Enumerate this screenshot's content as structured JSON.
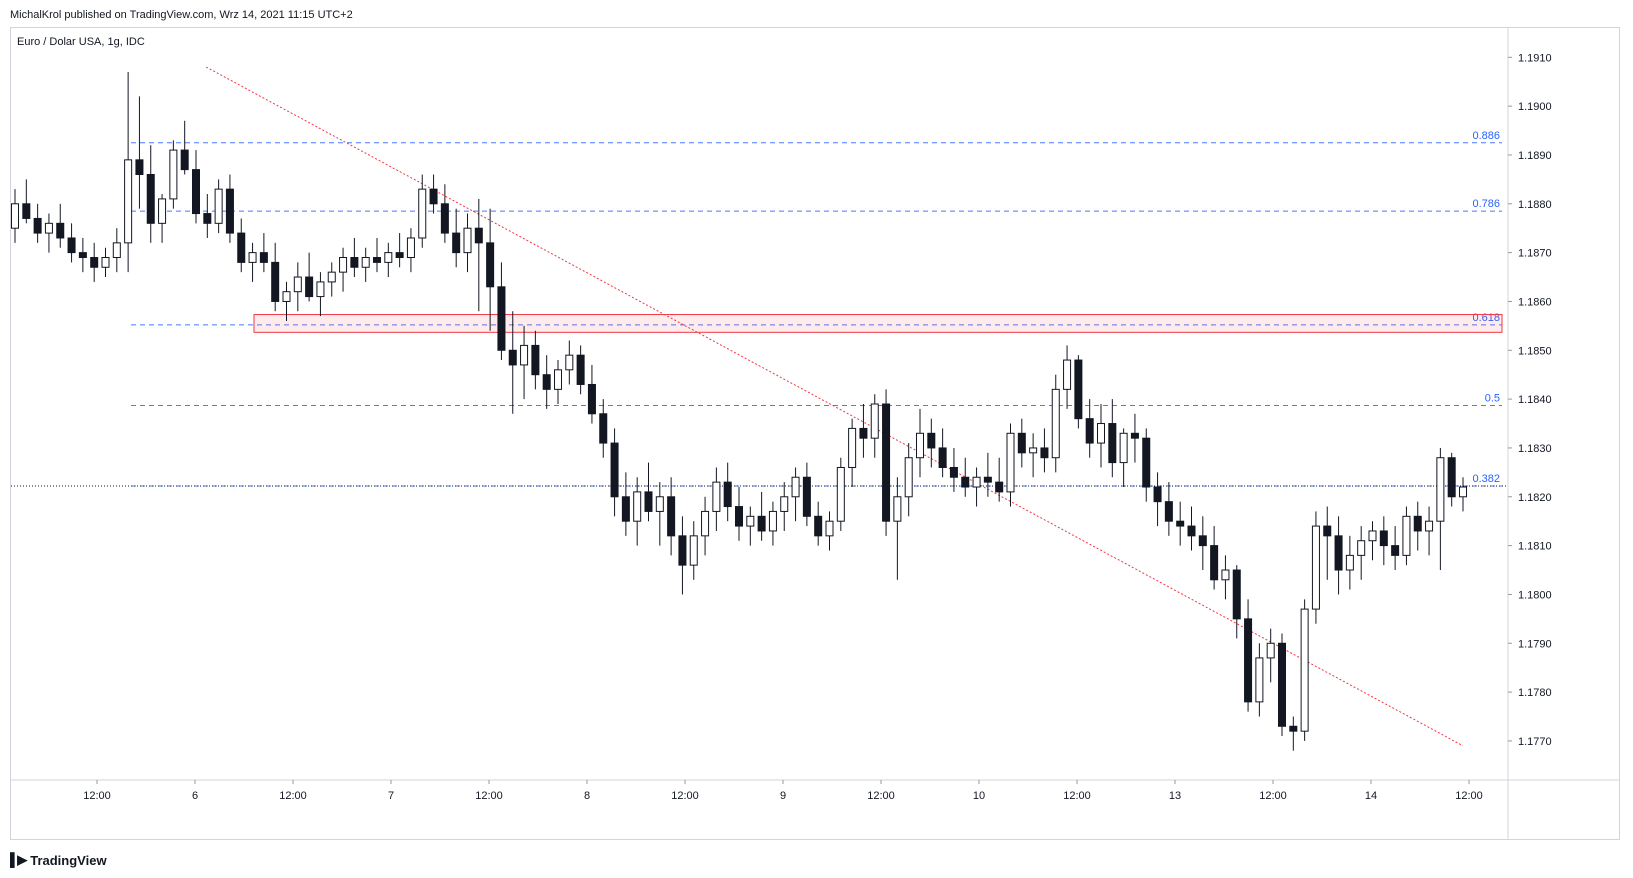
{
  "header": {
    "publisher_line": "MichalKrol published on TradingView.com, Wrz 14, 2021 11:15 UTC+2"
  },
  "footer": {
    "brand": "TradingView"
  },
  "chart_data": {
    "type": "candlestick",
    "title": "Euro / Dolar USA, 1g, IDC",
    "y_axis": {
      "ylim": [
        1.1762,
        1.1916
      ],
      "ticks": [
        "1.1910",
        "1.1900",
        "1.1890",
        "1.1880",
        "1.1870",
        "1.1860",
        "1.1850",
        "1.1840",
        "1.1830",
        "1.1820",
        "1.1810",
        "1.1800",
        "1.1790",
        "1.1780",
        "1.1770"
      ]
    },
    "x_axis": {
      "tick_labels": [
        "12:00",
        "6",
        "12:00",
        "7",
        "12:00",
        "8",
        "12:00",
        "9",
        "12:00",
        "10",
        "12:00",
        "13",
        "12:00",
        "14",
        "12:00"
      ]
    },
    "fib_levels": [
      {
        "label": "0.886",
        "value": 1.18925
      },
      {
        "label": "0.786",
        "value": 1.18785
      },
      {
        "label": "0.618",
        "value": 1.18552
      },
      {
        "label": "0.5",
        "value": 1.18387
      },
      {
        "label": "0.382",
        "value": 1.18222
      }
    ],
    "current_price": 1.18222,
    "resistance_zone": {
      "high": 1.18565,
      "low": 1.18545
    },
    "trendline": {
      "from": {
        "bar": 7,
        "price": 1.1908
      },
      "to": {
        "bar": 231,
        "price": 1.1769
      }
    },
    "candles": [
      {
        "o": 1.1875,
        "h": 1.1883,
        "l": 1.1872,
        "c": 1.188
      },
      {
        "o": 1.188,
        "h": 1.1885,
        "l": 1.1876,
        "c": 1.1877
      },
      {
        "o": 1.1877,
        "h": 1.188,
        "l": 1.1872,
        "c": 1.1874
      },
      {
        "o": 1.1874,
        "h": 1.1878,
        "l": 1.187,
        "c": 1.1876
      },
      {
        "o": 1.1876,
        "h": 1.188,
        "l": 1.1871,
        "c": 1.1873
      },
      {
        "o": 1.1873,
        "h": 1.1876,
        "l": 1.1868,
        "c": 1.187
      },
      {
        "o": 1.187,
        "h": 1.1873,
        "l": 1.1866,
        "c": 1.1869
      },
      {
        "o": 1.1869,
        "h": 1.1872,
        "l": 1.1864,
        "c": 1.1867
      },
      {
        "o": 1.1867,
        "h": 1.1871,
        "l": 1.1865,
        "c": 1.1869
      },
      {
        "o": 1.1869,
        "h": 1.1875,
        "l": 1.1866,
        "c": 1.1872
      },
      {
        "o": 1.1872,
        "h": 1.1907,
        "l": 1.1866,
        "c": 1.1889
      },
      {
        "o": 1.1889,
        "h": 1.1902,
        "l": 1.1879,
        "c": 1.1886
      },
      {
        "o": 1.1886,
        "h": 1.1892,
        "l": 1.1872,
        "c": 1.1876
      },
      {
        "o": 1.1876,
        "h": 1.1882,
        "l": 1.1872,
        "c": 1.1881
      },
      {
        "o": 1.1881,
        "h": 1.1893,
        "l": 1.1879,
        "c": 1.1891
      },
      {
        "o": 1.1891,
        "h": 1.1897,
        "l": 1.1886,
        "c": 1.1887
      },
      {
        "o": 1.1887,
        "h": 1.1891,
        "l": 1.1876,
        "c": 1.1878
      },
      {
        "o": 1.1878,
        "h": 1.1882,
        "l": 1.1873,
        "c": 1.1876
      },
      {
        "o": 1.1876,
        "h": 1.1885,
        "l": 1.1874,
        "c": 1.1883
      },
      {
        "o": 1.1883,
        "h": 1.1886,
        "l": 1.1872,
        "c": 1.1874
      },
      {
        "o": 1.1874,
        "h": 1.1877,
        "l": 1.1866,
        "c": 1.1868
      },
      {
        "o": 1.1868,
        "h": 1.1872,
        "l": 1.1864,
        "c": 1.187
      },
      {
        "o": 1.187,
        "h": 1.1874,
        "l": 1.1866,
        "c": 1.1868
      },
      {
        "o": 1.1868,
        "h": 1.1872,
        "l": 1.1858,
        "c": 1.186
      },
      {
        "o": 1.186,
        "h": 1.1864,
        "l": 1.1856,
        "c": 1.1862
      },
      {
        "o": 1.1862,
        "h": 1.1868,
        "l": 1.1858,
        "c": 1.1865
      },
      {
        "o": 1.1865,
        "h": 1.187,
        "l": 1.186,
        "c": 1.1861
      },
      {
        "o": 1.1861,
        "h": 1.1866,
        "l": 1.1857,
        "c": 1.1864
      },
      {
        "o": 1.1864,
        "h": 1.1868,
        "l": 1.1861,
        "c": 1.1866
      },
      {
        "o": 1.1866,
        "h": 1.1871,
        "l": 1.1862,
        "c": 1.1869
      },
      {
        "o": 1.1869,
        "h": 1.1873,
        "l": 1.1865,
        "c": 1.1867
      },
      {
        "o": 1.1867,
        "h": 1.1871,
        "l": 1.1864,
        "c": 1.1869
      },
      {
        "o": 1.1869,
        "h": 1.1873,
        "l": 1.1866,
        "c": 1.1868
      },
      {
        "o": 1.1868,
        "h": 1.1872,
        "l": 1.1865,
        "c": 1.187
      },
      {
        "o": 1.187,
        "h": 1.1874,
        "l": 1.1867,
        "c": 1.1869
      },
      {
        "o": 1.1869,
        "h": 1.1875,
        "l": 1.1866,
        "c": 1.1873
      },
      {
        "o": 1.1873,
        "h": 1.1886,
        "l": 1.1871,
        "c": 1.1883
      },
      {
        "o": 1.1883,
        "h": 1.1886,
        "l": 1.1878,
        "c": 1.188
      },
      {
        "o": 1.188,
        "h": 1.1884,
        "l": 1.1872,
        "c": 1.1874
      },
      {
        "o": 1.1874,
        "h": 1.1879,
        "l": 1.1867,
        "c": 1.187
      },
      {
        "o": 1.187,
        "h": 1.1878,
        "l": 1.1866,
        "c": 1.1875
      },
      {
        "o": 1.1875,
        "h": 1.1881,
        "l": 1.1858,
        "c": 1.1872
      },
      {
        "o": 1.1872,
        "h": 1.1879,
        "l": 1.1854,
        "c": 1.1863
      },
      {
        "o": 1.1863,
        "h": 1.1868,
        "l": 1.1848,
        "c": 1.185
      },
      {
        "o": 1.185,
        "h": 1.1858,
        "l": 1.1837,
        "c": 1.1847
      },
      {
        "o": 1.1847,
        "h": 1.1855,
        "l": 1.184,
        "c": 1.1851
      },
      {
        "o": 1.1851,
        "h": 1.1854,
        "l": 1.1842,
        "c": 1.1845
      },
      {
        "o": 1.1845,
        "h": 1.1849,
        "l": 1.1838,
        "c": 1.1842
      },
      {
        "o": 1.1842,
        "h": 1.1848,
        "l": 1.1839,
        "c": 1.1846
      },
      {
        "o": 1.1846,
        "h": 1.1852,
        "l": 1.1843,
        "c": 1.1849
      },
      {
        "o": 1.1849,
        "h": 1.1851,
        "l": 1.1841,
        "c": 1.1843
      },
      {
        "o": 1.1843,
        "h": 1.1847,
        "l": 1.1835,
        "c": 1.1837
      },
      {
        "o": 1.1837,
        "h": 1.184,
        "l": 1.1828,
        "c": 1.1831
      },
      {
        "o": 1.1831,
        "h": 1.1834,
        "l": 1.1816,
        "c": 1.182
      },
      {
        "o": 1.182,
        "h": 1.1825,
        "l": 1.1812,
        "c": 1.1815
      },
      {
        "o": 1.1815,
        "h": 1.1824,
        "l": 1.181,
        "c": 1.1821
      },
      {
        "o": 1.1821,
        "h": 1.1827,
        "l": 1.1815,
        "c": 1.1817
      },
      {
        "o": 1.1817,
        "h": 1.1823,
        "l": 1.181,
        "c": 1.182
      },
      {
        "o": 1.182,
        "h": 1.1824,
        "l": 1.1808,
        "c": 1.1812
      },
      {
        "o": 1.1812,
        "h": 1.1816,
        "l": 1.18,
        "c": 1.1806
      },
      {
        "o": 1.1806,
        "h": 1.1815,
        "l": 1.1803,
        "c": 1.1812
      },
      {
        "o": 1.1812,
        "h": 1.182,
        "l": 1.1808,
        "c": 1.1817
      },
      {
        "o": 1.1817,
        "h": 1.1826,
        "l": 1.1813,
        "c": 1.1823
      },
      {
        "o": 1.1823,
        "h": 1.1827,
        "l": 1.1815,
        "c": 1.1818
      },
      {
        "o": 1.1818,
        "h": 1.1822,
        "l": 1.1811,
        "c": 1.1814
      },
      {
        "o": 1.1814,
        "h": 1.1818,
        "l": 1.181,
        "c": 1.1816
      },
      {
        "o": 1.1816,
        "h": 1.1821,
        "l": 1.1811,
        "c": 1.1813
      },
      {
        "o": 1.1813,
        "h": 1.1819,
        "l": 1.181,
        "c": 1.1817
      },
      {
        "o": 1.1817,
        "h": 1.1823,
        "l": 1.1813,
        "c": 1.182
      },
      {
        "o": 1.182,
        "h": 1.1826,
        "l": 1.1815,
        "c": 1.1824
      },
      {
        "o": 1.1824,
        "h": 1.1827,
        "l": 1.1814,
        "c": 1.1816
      },
      {
        "o": 1.1816,
        "h": 1.1819,
        "l": 1.181,
        "c": 1.1812
      },
      {
        "o": 1.1812,
        "h": 1.1817,
        "l": 1.1809,
        "c": 1.1815
      },
      {
        "o": 1.1815,
        "h": 1.1828,
        "l": 1.1813,
        "c": 1.1826
      },
      {
        "o": 1.1826,
        "h": 1.1836,
        "l": 1.1822,
        "c": 1.1834
      },
      {
        "o": 1.1834,
        "h": 1.1839,
        "l": 1.1828,
        "c": 1.1832
      },
      {
        "o": 1.1832,
        "h": 1.1841,
        "l": 1.1828,
        "c": 1.1839
      },
      {
        "o": 1.1839,
        "h": 1.1842,
        "l": 1.1812,
        "c": 1.1815
      },
      {
        "o": 1.1815,
        "h": 1.1824,
        "l": 1.1803,
        "c": 1.182
      },
      {
        "o": 1.182,
        "h": 1.1831,
        "l": 1.1816,
        "c": 1.1828
      },
      {
        "o": 1.1828,
        "h": 1.1838,
        "l": 1.1824,
        "c": 1.1833
      },
      {
        "o": 1.1833,
        "h": 1.1836,
        "l": 1.1826,
        "c": 1.183
      },
      {
        "o": 1.183,
        "h": 1.1834,
        "l": 1.1824,
        "c": 1.1826
      },
      {
        "o": 1.1826,
        "h": 1.183,
        "l": 1.1821,
        "c": 1.1824
      },
      {
        "o": 1.1824,
        "h": 1.1828,
        "l": 1.182,
        "c": 1.1822
      },
      {
        "o": 1.1822,
        "h": 1.1826,
        "l": 1.1818,
        "c": 1.1824
      },
      {
        "o": 1.1824,
        "h": 1.1829,
        "l": 1.182,
        "c": 1.1823
      },
      {
        "o": 1.1823,
        "h": 1.1828,
        "l": 1.1819,
        "c": 1.1821
      },
      {
        "o": 1.1821,
        "h": 1.1835,
        "l": 1.1818,
        "c": 1.1833
      },
      {
        "o": 1.1833,
        "h": 1.1836,
        "l": 1.1826,
        "c": 1.1829
      },
      {
        "o": 1.1829,
        "h": 1.1833,
        "l": 1.1824,
        "c": 1.183
      },
      {
        "o": 1.183,
        "h": 1.1834,
        "l": 1.1825,
        "c": 1.1828
      },
      {
        "o": 1.1828,
        "h": 1.1845,
        "l": 1.1825,
        "c": 1.1842
      },
      {
        "o": 1.1842,
        "h": 1.1851,
        "l": 1.1838,
        "c": 1.1848
      },
      {
        "o": 1.1848,
        "h": 1.1849,
        "l": 1.1834,
        "c": 1.1836
      },
      {
        "o": 1.1836,
        "h": 1.184,
        "l": 1.1828,
        "c": 1.1831
      },
      {
        "o": 1.1831,
        "h": 1.1839,
        "l": 1.1826,
        "c": 1.1835
      },
      {
        "o": 1.1835,
        "h": 1.184,
        "l": 1.1824,
        "c": 1.1827
      },
      {
        "o": 1.1827,
        "h": 1.1834,
        "l": 1.1822,
        "c": 1.1833
      },
      {
        "o": 1.1833,
        "h": 1.1837,
        "l": 1.1827,
        "c": 1.1832
      },
      {
        "o": 1.1832,
        "h": 1.1834,
        "l": 1.1819,
        "c": 1.1822
      },
      {
        "o": 1.1822,
        "h": 1.1825,
        "l": 1.1814,
        "c": 1.1819
      },
      {
        "o": 1.1819,
        "h": 1.1823,
        "l": 1.1812,
        "c": 1.1815
      },
      {
        "o": 1.1815,
        "h": 1.1819,
        "l": 1.181,
        "c": 1.1814
      },
      {
        "o": 1.1814,
        "h": 1.1818,
        "l": 1.1809,
        "c": 1.1812
      },
      {
        "o": 1.1812,
        "h": 1.1816,
        "l": 1.1805,
        "c": 1.181
      },
      {
        "o": 1.181,
        "h": 1.1814,
        "l": 1.1801,
        "c": 1.1803
      },
      {
        "o": 1.1803,
        "h": 1.1808,
        "l": 1.1799,
        "c": 1.1805
      },
      {
        "o": 1.1805,
        "h": 1.1806,
        "l": 1.1791,
        "c": 1.1795
      },
      {
        "o": 1.1795,
        "h": 1.1799,
        "l": 1.1776,
        "c": 1.1778
      },
      {
        "o": 1.1778,
        "h": 1.179,
        "l": 1.1775,
        "c": 1.1787
      },
      {
        "o": 1.1787,
        "h": 1.1793,
        "l": 1.1782,
        "c": 1.179
      },
      {
        "o": 1.179,
        "h": 1.1792,
        "l": 1.1771,
        "c": 1.1773
      },
      {
        "o": 1.1773,
        "h": 1.1775,
        "l": 1.1768,
        "c": 1.1772
      },
      {
        "o": 1.1772,
        "h": 1.1799,
        "l": 1.177,
        "c": 1.1797
      },
      {
        "o": 1.1797,
        "h": 1.1817,
        "l": 1.1794,
        "c": 1.1814
      },
      {
        "o": 1.1814,
        "h": 1.1818,
        "l": 1.1803,
        "c": 1.1812
      },
      {
        "o": 1.1812,
        "h": 1.1816,
        "l": 1.18,
        "c": 1.1805
      },
      {
        "o": 1.1805,
        "h": 1.1812,
        "l": 1.1801,
        "c": 1.1808
      },
      {
        "o": 1.1808,
        "h": 1.1814,
        "l": 1.1803,
        "c": 1.1811
      },
      {
        "o": 1.1811,
        "h": 1.1815,
        "l": 1.1807,
        "c": 1.1813
      },
      {
        "o": 1.1813,
        "h": 1.1816,
        "l": 1.1806,
        "c": 1.181
      },
      {
        "o": 1.181,
        "h": 1.1814,
        "l": 1.1805,
        "c": 1.1808
      },
      {
        "o": 1.1808,
        "h": 1.1818,
        "l": 1.1806,
        "c": 1.1816
      },
      {
        "o": 1.1816,
        "h": 1.1819,
        "l": 1.1809,
        "c": 1.1813
      },
      {
        "o": 1.1813,
        "h": 1.1818,
        "l": 1.1808,
        "c": 1.1815
      },
      {
        "o": 1.1815,
        "h": 1.183,
        "l": 1.1805,
        "c": 1.1828
      },
      {
        "o": 1.1828,
        "h": 1.1829,
        "l": 1.1818,
        "c": 1.182
      },
      {
        "o": 1.182,
        "h": 1.1824,
        "l": 1.1817,
        "c": 1.1822
      }
    ]
  }
}
